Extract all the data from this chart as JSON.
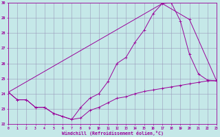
{
  "xlabel": "Windchill (Refroidissement éolien,°C)",
  "bg_color": "#c5e8e8",
  "grid_color": "#9999bb",
  "line_color": "#990099",
  "xlim": [
    0,
    23
  ],
  "ylim": [
    22,
    30
  ],
  "xticks": [
    0,
    1,
    2,
    3,
    4,
    5,
    6,
    7,
    8,
    9,
    10,
    11,
    12,
    13,
    14,
    15,
    16,
    17,
    18,
    19,
    20,
    21,
    22,
    23
  ],
  "yticks": [
    22,
    23,
    24,
    25,
    26,
    27,
    28,
    29,
    30
  ],
  "curve1_x": [
    0,
    1,
    2,
    3,
    4,
    5,
    6,
    7,
    8,
    9,
    10,
    11,
    12,
    13,
    14,
    15,
    16,
    17,
    18,
    19,
    20,
    21,
    22,
    23
  ],
  "curve1_y": [
    24.1,
    23.6,
    23.6,
    23.1,
    23.1,
    22.7,
    22.5,
    22.3,
    23.1,
    23.7,
    24.0,
    24.8,
    26.0,
    26.4,
    27.4,
    28.2,
    29.3,
    29.95,
    30.0,
    28.8,
    26.6,
    25.3,
    24.9,
    24.85
  ],
  "curve2_x": [
    0,
    1,
    2,
    3,
    4,
    5,
    6,
    7,
    8,
    9,
    10,
    11,
    12,
    13,
    14,
    15,
    16,
    17,
    18,
    19,
    20,
    21,
    22,
    23
  ],
  "curve2_y": [
    24.1,
    23.6,
    23.6,
    23.1,
    23.1,
    22.7,
    22.5,
    22.3,
    22.4,
    22.9,
    23.1,
    23.4,
    23.7,
    23.8,
    24.0,
    24.15,
    24.25,
    24.35,
    24.45,
    24.55,
    24.65,
    24.75,
    24.85,
    24.85
  ],
  "curve3_x": [
    0,
    17,
    20,
    23
  ],
  "curve3_y": [
    24.1,
    29.95,
    28.9,
    24.85
  ]
}
